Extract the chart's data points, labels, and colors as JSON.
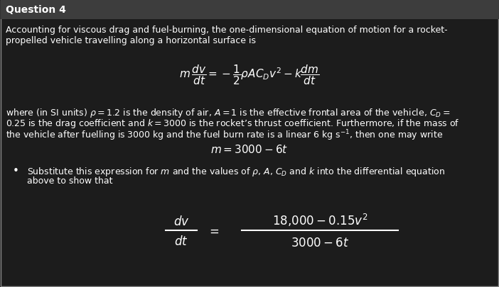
{
  "background_color": "#1c1c1c",
  "header_bg": "#3d3d3d",
  "border_color": "#888888",
  "text_color": "#ffffff",
  "header_text": "Question 4",
  "line1": "Accounting for viscous drag and fuel-burning, the one-dimensional equation of motion for a rocket-",
  "line2": "propelled vehicle travelling along a horizontal surface is",
  "eq_main": "$m\\,\\dfrac{dv}{dt} = -\\dfrac{1}{2}\\rho A C_D v^2 - k\\dfrac{dm}{dt}$",
  "body_line1": "where (in SI units) $\\rho = 1.2$ is the density of air, $A = 1$ is the effective frontal area of the vehicle, $C_D =$",
  "body_line2": "0.25 is the drag coefficient and $k = 3000$ is the rocket’s thrust coefficient. Furthermore, if the mass of",
  "body_line3": "the vehicle after fuelling is 3000 kg and the fuel burn rate is a linear 6 kg s$^{-1}$, then one may write",
  "eq_mass": "$m = 3000 - 6t$",
  "bullet": "•",
  "bullet_line1": "Substitute this expression for $m$ and the values of $\\rho$, $A$, $C_D$ and $k$ into the differential equation",
  "bullet_line2": "above to show that",
  "lhs_num": "$dv$",
  "lhs_den": "$dt$",
  "rhs_num": "$18{,}000 - 0.15v^2$",
  "rhs_den": "$3000 - 6t$",
  "font_size_header": 10,
  "font_size_body": 9,
  "font_size_eq_main": 11,
  "font_size_eq_final": 11
}
